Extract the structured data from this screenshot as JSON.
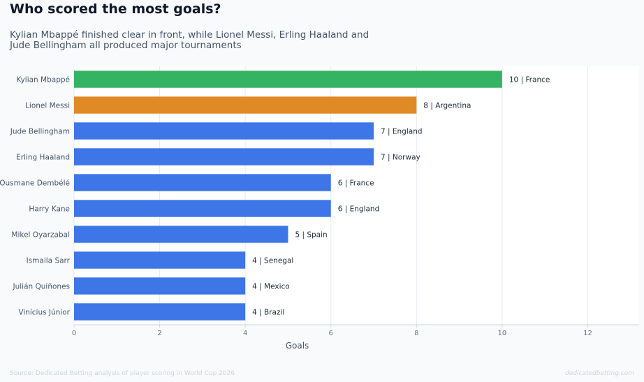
{
  "header": {
    "title": "Who scored the most goals?",
    "subtitle": "Kylian Mbappé finished clear in front, while Lionel Messi, Erling Haaland and Jude Bellingham all produced major tournaments"
  },
  "footer": {
    "source": "Source: Dedicated Betting analysis of player scoring in World Cup 2026",
    "brand": "dedicatedbetting.com"
  },
  "colors": {
    "leader": "#34b362",
    "runner_up": "#e08a26",
    "default": "#3e76e8",
    "grid": "#e6ebf1",
    "plot_bg": "#ffffff"
  },
  "chart_data": {
    "type": "bar",
    "orientation": "horizontal",
    "xlabel": "Goals",
    "ylabel": "",
    "xlim": [
      0,
      13.2
    ],
    "xticks": [
      0,
      2,
      4,
      6,
      8,
      10,
      12
    ],
    "grid": true,
    "categories": [
      "Kylian Mbappé",
      "Lionel Messi",
      "Jude Bellingham",
      "Erling Haaland",
      "Ousmane Dembélé",
      "Harry Kane",
      "Mikel Oyarzabal",
      "Ismaila Sarr",
      "Julián Quiñones",
      "Vinícius Júnior"
    ],
    "values": [
      10,
      8,
      7,
      7,
      6,
      6,
      5,
      4,
      4,
      4
    ],
    "teams": [
      "France",
      "Argentina",
      "England",
      "Norway",
      "France",
      "England",
      "Spain",
      "Senegal",
      "Mexico",
      "Brazil"
    ],
    "bar_labels": [
      "10 | France",
      "8 | Argentina",
      "7 | England",
      "7 | Norway",
      "6 | France",
      "6 | England",
      "5 | Spain",
      "4 | Senegal",
      "4 | Mexico",
      "4 | Brazil"
    ],
    "bar_color_roles": [
      "leader",
      "runner_up",
      "default",
      "default",
      "default",
      "default",
      "default",
      "default",
      "default",
      "default"
    ]
  }
}
